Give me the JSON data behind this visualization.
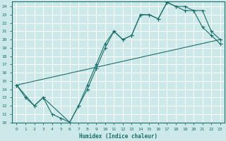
{
  "title": "",
  "xlabel": "Humidex (Indice chaleur)",
  "bg_color": "#cde8e8",
  "grid_color": "#ffffff",
  "line_color": "#1a6e6a",
  "xlim": [
    -0.5,
    23.5
  ],
  "ylim": [
    10,
    24.6
  ],
  "xticks": [
    0,
    1,
    2,
    3,
    4,
    5,
    6,
    7,
    8,
    9,
    10,
    11,
    12,
    13,
    14,
    15,
    16,
    17,
    18,
    19,
    20,
    21,
    22,
    23
  ],
  "yticks": [
    10,
    11,
    12,
    13,
    14,
    15,
    16,
    17,
    18,
    19,
    20,
    21,
    22,
    23,
    24
  ],
  "line1_x": [
    0,
    1,
    2,
    3,
    4,
    5,
    6,
    7,
    8,
    9,
    10,
    11,
    12,
    13,
    14,
    15,
    16,
    17,
    18,
    19,
    20,
    21,
    22,
    23
  ],
  "line1_y": [
    14.5,
    13,
    12,
    13,
    11,
    10.5,
    10,
    12,
    14.5,
    17,
    19.5,
    21,
    20,
    20.5,
    23,
    23,
    22.5,
    24.5,
    24,
    24,
    23.5,
    21.5,
    20.5,
    19.5
  ],
  "line2_x": [
    0,
    2,
    3,
    6,
    7,
    8,
    9,
    10,
    11,
    12,
    13,
    14,
    15,
    16,
    17,
    18,
    19,
    20,
    21,
    22,
    23
  ],
  "line2_y": [
    14.5,
    12,
    13,
    10,
    12,
    14,
    16.5,
    19,
    21,
    20,
    20.5,
    23,
    23,
    22.5,
    24.5,
    24,
    23.5,
    23.5,
    23.5,
    21,
    20
  ],
  "line3_x": [
    0,
    23
  ],
  "line3_y": [
    14.5,
    20
  ]
}
